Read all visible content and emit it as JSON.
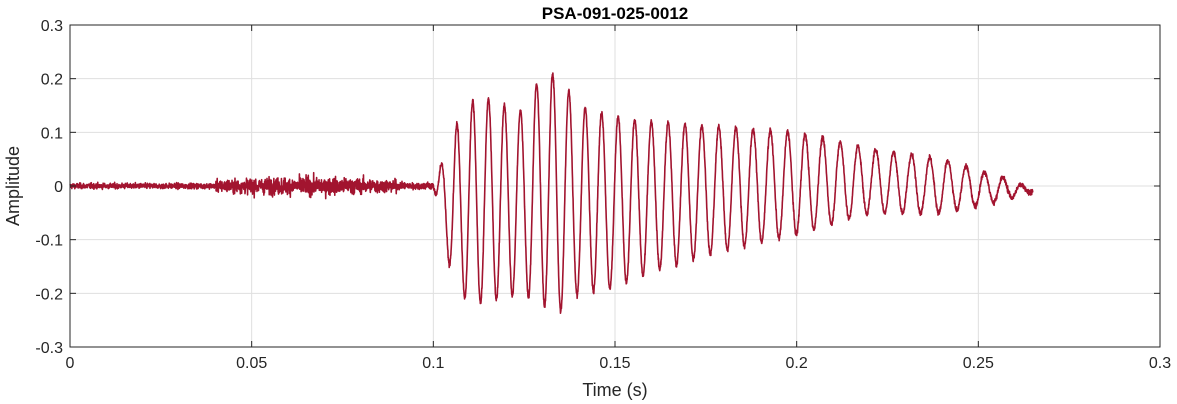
{
  "chart_data": {
    "type": "line",
    "title": "PSA-091-025-0012",
    "xlabel": "Time (s)",
    "ylabel": "Amplitude",
    "xlim": [
      0,
      0.3
    ],
    "ylim": [
      -0.3,
      0.3
    ],
    "xticks": [
      0,
      0.05,
      0.1,
      0.15,
      0.2,
      0.25,
      0.3
    ],
    "xtick_labels": [
      "0",
      "0.05",
      "0.1",
      "0.15",
      "0.2",
      "0.25",
      "0.3"
    ],
    "yticks": [
      -0.3,
      -0.2,
      -0.1,
      0,
      0.1,
      0.2,
      0.3
    ],
    "ytick_labels": [
      "-0.3",
      "-0.2",
      "-0.1",
      "0",
      "0.1",
      "0.2",
      "0.3"
    ],
    "grid": true,
    "line_color": "#a2142f",
    "signal": {
      "duration": 0.265,
      "noise_segment": [
        0,
        0.1
      ],
      "noise_peak": 0.03,
      "oscillation_segment": [
        0.1,
        0.265
      ],
      "oscillation_peaks": [
        {
          "t": 0.106,
          "max": 0.11,
          "min": -0.2
        },
        {
          "t": 0.112,
          "max": 0.17,
          "min": -0.22
        },
        {
          "t": 0.124,
          "max": 0.14,
          "min": -0.2
        },
        {
          "t": 0.13,
          "max": 0.21,
          "min": -0.22
        },
        {
          "t": 0.134,
          "max": 0.21,
          "min": -0.24
        },
        {
          "t": 0.14,
          "max": 0.15,
          "min": -0.2
        },
        {
          "t": 0.15,
          "max": 0.13,
          "min": -0.19
        },
        {
          "t": 0.16,
          "max": 0.12,
          "min": -0.16
        },
        {
          "t": 0.18,
          "max": 0.11,
          "min": -0.12
        },
        {
          "t": 0.2,
          "max": 0.1,
          "min": -0.09
        },
        {
          "t": 0.22,
          "max": 0.07,
          "min": -0.05
        },
        {
          "t": 0.24,
          "max": 0.05,
          "min": -0.05
        },
        {
          "t": 0.255,
          "max": 0.02,
          "min": -0.03
        },
        {
          "t": 0.265,
          "max": -0.005,
          "min": -0.01
        }
      ]
    }
  }
}
